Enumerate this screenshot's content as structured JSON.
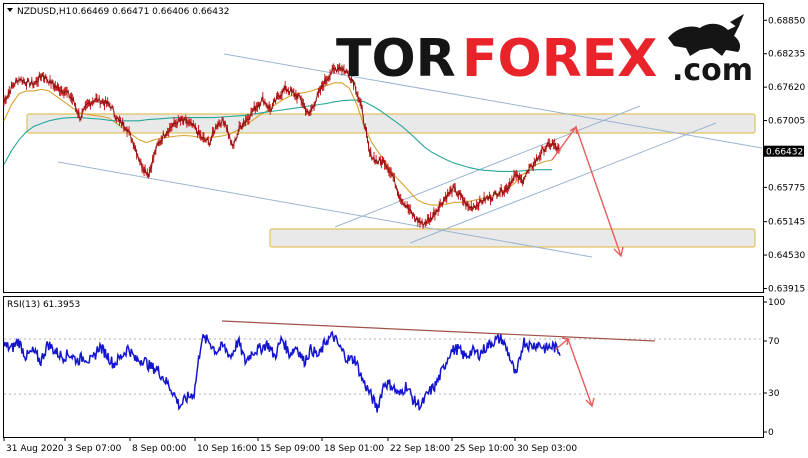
{
  "header": {
    "symbol": "NZDUSD,H1",
    "ohlc": "0.66469 0.66471 0.66406 0.66432",
    "rsi_label": "RSI(13) 61.3953"
  },
  "logo": {
    "part1": "TOR",
    "part2": "FOREX",
    "part3": ".com",
    "bull_icon": "bull-icon"
  },
  "colors": {
    "candle": "#c62020",
    "ma_fast": "#d9a030",
    "ma_slow": "#2aa89a",
    "channel": "#9bb4cf",
    "zone_border": "#e2c25e",
    "zone_fill": "#e9e9e9",
    "arrow": "#e85c5c",
    "rsi": "#1515d0",
    "rsi_trend": "#a0524a",
    "price_tag_bg": "#000000"
  },
  "chart_data": [
    {
      "type": "line",
      "title": "NZDUSD,H1",
      "ylim": [
        0.6385,
        0.6915
      ],
      "y_ticks": [
        "0.68850",
        "0.68235",
        "0.67620",
        "0.67005",
        "0.66432",
        "0.65775",
        "0.65145",
        "0.64530",
        "0.63915"
      ],
      "x_ticks": [
        "31 Aug 2020",
        "3 Sep 07:00",
        "8 Sep 00:00",
        "10 Sep 16:00",
        "15 Sep 09:00",
        "18 Sep 01:00",
        "22 Sep 18:00",
        "25 Sep 10:00",
        "30 Sep 03:00"
      ],
      "current_price": "0.66432",
      "series": [
        {
          "values": [
            0.6735,
            0.6762,
            0.6778,
            0.677,
            0.6768,
            0.6785,
            0.6772,
            0.676,
            0.6755,
            0.674,
            0.6705,
            0.673,
            0.674,
            0.6735,
            0.6728,
            0.67,
            0.669,
            0.666,
            0.662,
            0.6602,
            0.665,
            0.6675,
            0.669,
            0.67,
            0.6698,
            0.6688,
            0.6668,
            0.666,
            0.6695,
            0.67,
            0.665,
            0.669,
            0.6705,
            0.6725,
            0.674,
            0.672,
            0.6745,
            0.676,
            0.675,
            0.674,
            0.671,
            0.674,
            0.677,
            0.679,
            0.68,
            0.679,
            0.677,
            0.672,
            0.664,
            0.6625,
            0.6625,
            0.66,
            0.656,
            0.654,
            0.652,
            0.651,
            0.652,
            0.654,
            0.656,
            0.6575,
            0.656,
            0.654,
            0.6545,
            0.6555,
            0.656,
            0.657,
            0.6575,
            0.66,
            0.659,
            0.661,
            0.663,
            0.665,
            0.6658,
            0.6643
          ]
        },
        {
          "name": "",
          "values": [
            0.67,
            0.673,
            0.675,
            0.6755,
            0.6755,
            0.6758,
            0.6755,
            0.6745,
            0.6735,
            0.6725,
            0.6715,
            0.6712,
            0.671,
            0.6708,
            0.6705,
            0.6695,
            0.6685,
            0.6675,
            0.6665,
            0.666,
            0.6665,
            0.6668,
            0.667,
            0.6672,
            0.6673,
            0.6672,
            0.667,
            0.6668,
            0.667,
            0.6672,
            0.6675,
            0.6682,
            0.669,
            0.67,
            0.671,
            0.6718,
            0.6728,
            0.6738,
            0.6745,
            0.675,
            0.6752,
            0.6755,
            0.676,
            0.6765,
            0.677,
            0.677,
            0.676,
            0.673,
            0.669,
            0.666,
            0.664,
            0.662,
            0.66,
            0.6585,
            0.657,
            0.6555,
            0.6548,
            0.6545,
            0.6545,
            0.6547,
            0.655,
            0.655,
            0.6552,
            0.6555,
            0.6558,
            0.6562,
            0.6568,
            0.6575,
            0.6585,
            0.66,
            0.661,
            0.662,
            0.6625,
            0.6628
          ]
        },
        {
          "name": "",
          "values": [
            0.662,
            0.6645,
            0.6665,
            0.668,
            0.669,
            0.6695,
            0.67,
            0.6703,
            0.6705,
            0.6706,
            0.6706,
            0.6705,
            0.6704,
            0.6703,
            0.6701,
            0.67,
            0.67,
            0.67,
            0.67,
            0.6702,
            0.6703,
            0.6704,
            0.6705,
            0.6706,
            0.6706,
            0.6706,
            0.6706,
            0.6706,
            0.6706,
            0.6707,
            0.6708,
            0.6709,
            0.671,
            0.6712,
            0.6714,
            0.6716,
            0.6718,
            0.672,
            0.6722,
            0.6724,
            0.6726,
            0.6728,
            0.673,
            0.6732,
            0.6735,
            0.6737,
            0.6738,
            0.6738,
            0.6735,
            0.6728,
            0.672,
            0.671,
            0.67,
            0.669,
            0.6678,
            0.6665,
            0.6652,
            0.6642,
            0.6635,
            0.6628,
            0.6622,
            0.6618,
            0.6614,
            0.6611,
            0.6609,
            0.6608,
            0.6607,
            0.6607,
            0.6607,
            0.6608,
            0.6609,
            0.661,
            0.661,
            0.661
          ]
        }
      ]
    },
    {
      "type": "line",
      "title": "RSI(13) 61.3953",
      "ylim": [
        0,
        100
      ],
      "y_ticks": [
        "100",
        "70",
        "30",
        "0"
      ],
      "series": [
        {
          "values": [
            67,
            64,
            70,
            58,
            62,
            54,
            68,
            62,
            58,
            60,
            55,
            58,
            54,
            66,
            60,
            52,
            58,
            65,
            55,
            56,
            50,
            48,
            40,
            32,
            20,
            26,
            30,
            72,
            70,
            62,
            66,
            58,
            70,
            54,
            62,
            64,
            68,
            58,
            72,
            60,
            66,
            54,
            64,
            58,
            70,
            74,
            64,
            56,
            56,
            40,
            30,
            18,
            38,
            36,
            28,
            36,
            24,
            20,
            30,
            36,
            48,
            62,
            64,
            58,
            62,
            60,
            66,
            70,
            72,
            60,
            42,
            70,
            66,
            68,
            64,
            66,
            62
          ]
        }
      ]
    }
  ]
}
